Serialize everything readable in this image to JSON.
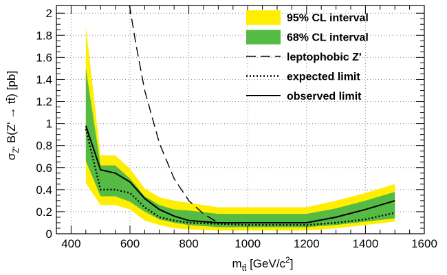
{
  "chart_data": {
    "type": "line",
    "xlabel": "m_tt̄ [GeV/c²]",
    "ylabel": "σZ' B(Z' → tt̄) [pb]",
    "xlabel_main": "m",
    "xlabel_sub": "tt̄",
    "xlabel_unit_pre": " [GeV/c",
    "xlabel_unit_sup": "2",
    "xlabel_unit_post": "]",
    "ylabel_pre": "σ",
    "ylabel_sub": "Z'",
    "ylabel_post": " B(Z' → tt̄) [pb]",
    "xlim": [
      350,
      1600
    ],
    "ylim": [
      0,
      2.07
    ],
    "x_ticks": [
      400,
      600,
      800,
      1000,
      1200,
      1400,
      1600
    ],
    "y_ticks": [
      0,
      0.2,
      0.4,
      0.6,
      0.8,
      1,
      1.2,
      1.4,
      1.6,
      1.8,
      2
    ],
    "y_tick_labels": [
      "0",
      "0.2",
      "0.4",
      "0.6",
      "0.8",
      "1",
      "1.2",
      "1.4",
      "1.6",
      "1.8",
      "2"
    ],
    "grid": true,
    "legend_position": "top-right",
    "x": [
      450,
      500,
      550,
      600,
      650,
      700,
      750,
      800,
      900,
      1000,
      1100,
      1200,
      1300,
      1400,
      1500
    ],
    "series": [
      {
        "name": "95% CL interval",
        "kind": "band",
        "color": "#ffee00",
        "lower": [
          0.46,
          0.26,
          0.26,
          0.22,
          0.12,
          0.08,
          0.05,
          0.04,
          0.03,
          0.03,
          0.03,
          0.03,
          0.05,
          0.08,
          0.11
        ],
        "upper": [
          1.88,
          0.71,
          0.71,
          0.59,
          0.41,
          0.33,
          0.3,
          0.28,
          0.24,
          0.24,
          0.24,
          0.24,
          0.3,
          0.37,
          0.45
        ]
      },
      {
        "name": "68% CL interval",
        "kind": "band",
        "color": "#55bb44",
        "lower": [
          0.66,
          0.34,
          0.34,
          0.29,
          0.2,
          0.13,
          0.1,
          0.08,
          0.06,
          0.06,
          0.06,
          0.06,
          0.08,
          0.11,
          0.14
        ],
        "upper": [
          1.5,
          0.62,
          0.62,
          0.5,
          0.34,
          0.26,
          0.22,
          0.21,
          0.18,
          0.18,
          0.18,
          0.18,
          0.23,
          0.3,
          0.38
        ]
      },
      {
        "name": "leptophobic Z'",
        "kind": "line",
        "dash": "14,7",
        "x": [
          598,
          620,
          650,
          700,
          750,
          800,
          850,
          900
        ],
        "values": [
          2.08,
          1.72,
          1.3,
          0.82,
          0.5,
          0.3,
          0.18,
          0.1
        ]
      },
      {
        "name": "expected limit",
        "kind": "line",
        "dash": "2,3",
        "values": [
          0.95,
          0.4,
          0.4,
          0.37,
          0.24,
          0.15,
          0.12,
          0.1,
          0.09,
          0.08,
          0.08,
          0.08,
          0.1,
          0.13,
          0.19
        ]
      },
      {
        "name": "observed limit",
        "kind": "line",
        "dash": "",
        "values": [
          0.98,
          0.58,
          0.55,
          0.47,
          0.32,
          0.22,
          0.16,
          0.12,
          0.1,
          0.1,
          0.1,
          0.1,
          0.15,
          0.22,
          0.3
        ]
      }
    ]
  }
}
